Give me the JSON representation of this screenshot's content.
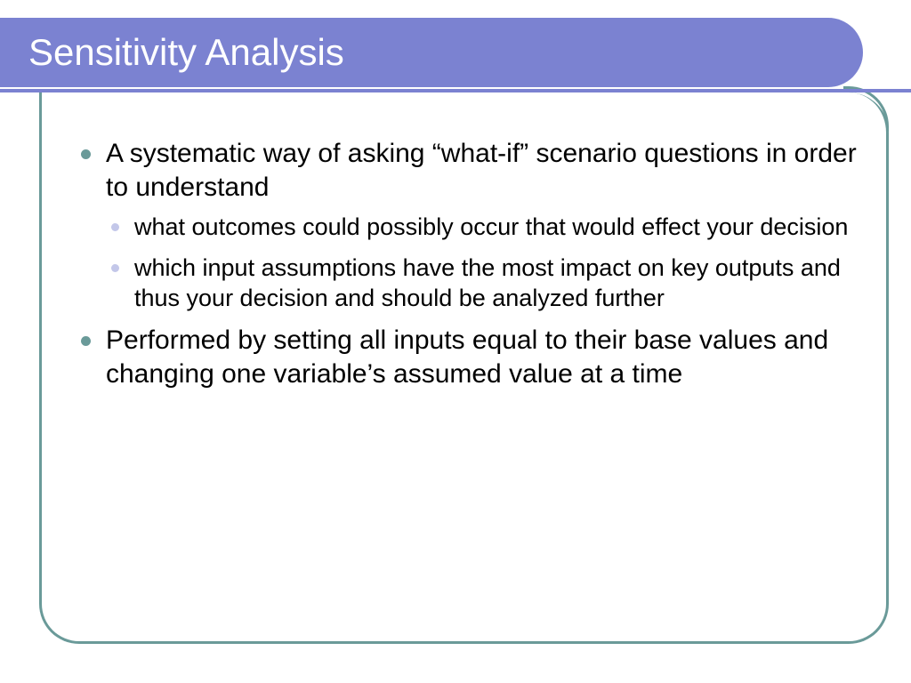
{
  "slide": {
    "title": "Sensitivity Analysis",
    "colors": {
      "title_bar_bg": "#7b82d1",
      "title_text": "#ffffff",
      "content_border": "#6a9a99",
      "main_bullet": "#6a9a99",
      "sub_bullet": "#c3c7e9",
      "body_text": "#000000",
      "background": "#ffffff"
    },
    "typography": {
      "title_fontsize": 42,
      "main_fontsize": 30,
      "sub_fontsize": 27,
      "font_family": "Arial"
    },
    "bullets": [
      {
        "text": "A systematic way of asking “what-if” scenario questions in order to understand",
        "sub": [
          "what outcomes could possibly occur that would effect your decision",
          "which input assumptions have the most impact on key outputs and thus your decision and should be analyzed further"
        ]
      },
      {
        "text": "Performed by setting all inputs equal to their base values and changing one variable’s assumed value at a time",
        "sub": []
      }
    ]
  }
}
